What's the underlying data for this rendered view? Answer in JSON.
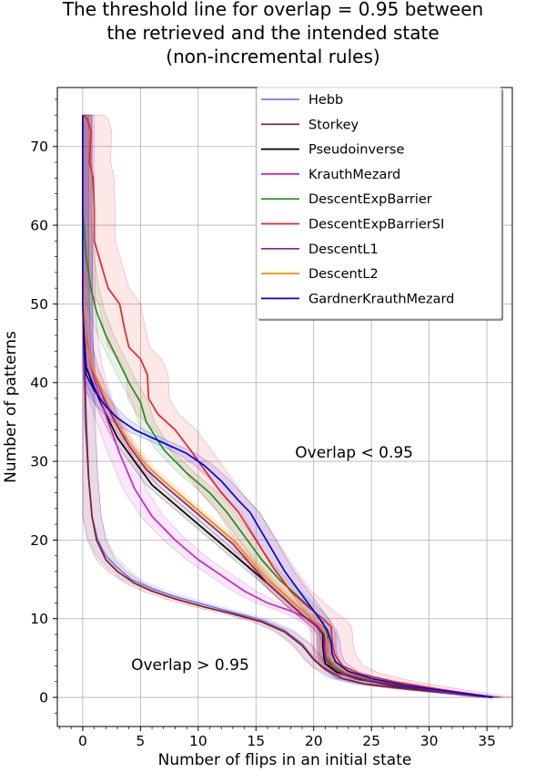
{
  "chart_data": {
    "type": "line",
    "title": [
      "The threshold line for overlap = 0.95 between",
      "the retrieved and the intended state",
      "(non-incremental rules)"
    ],
    "xlabel": "Number of flips in an initial state",
    "ylabel": "Number of patterns",
    "xlim": [
      -2.2,
      37.2
    ],
    "ylim": [
      -3.7,
      77.5
    ],
    "xticks": [
      0,
      5,
      10,
      15,
      20,
      25,
      30,
      35
    ],
    "yticks": [
      0,
      10,
      20,
      30,
      40,
      50,
      60,
      70
    ],
    "grid": true,
    "legend_position": "top-right",
    "annotations": [
      {
        "text": "Overlap < 0.95",
        "x": 23.5,
        "y": 30.5
      },
      {
        "text": "Overlap > 0.95",
        "x": 9.3,
        "y": 3.5
      }
    ],
    "series": [
      {
        "name": "Hebb",
        "color": "#7777ee",
        "band": 0.8,
        "points": [
          [
            0,
            74
          ],
          [
            0,
            60
          ],
          [
            0.1,
            45
          ],
          [
            0.2,
            35
          ],
          [
            0.5,
            28
          ],
          [
            0.8,
            23
          ],
          [
            1.3,
            20
          ],
          [
            2,
            18
          ],
          [
            3,
            16.5
          ],
          [
            4.2,
            15
          ],
          [
            6,
            13.8
          ],
          [
            8,
            12.8
          ],
          [
            10.5,
            11.8
          ],
          [
            13,
            10.8
          ],
          [
            15.5,
            9.8
          ],
          [
            17.5,
            8.5
          ],
          [
            19,
            6.8
          ],
          [
            20,
            5
          ],
          [
            20.6,
            4
          ],
          [
            21,
            3.5
          ],
          [
            22,
            2.5
          ],
          [
            24,
            1.8
          ],
          [
            27,
            1.2
          ],
          [
            31,
            0.6
          ],
          [
            35.5,
            0
          ]
        ]
      },
      {
        "name": "Storkey",
        "color": "#8b1a1a",
        "band": 0.8,
        "points": [
          [
            0,
            74
          ],
          [
            0,
            60
          ],
          [
            0.1,
            45
          ],
          [
            0.3,
            35
          ],
          [
            0.5,
            28
          ],
          [
            0.8,
            23
          ],
          [
            1.2,
            20
          ],
          [
            2,
            17.5
          ],
          [
            3,
            16
          ],
          [
            4.5,
            14.5
          ],
          [
            6,
            13.5
          ],
          [
            8,
            12.5
          ],
          [
            10.5,
            11.5
          ],
          [
            13,
            10.6
          ],
          [
            15.5,
            9.6
          ],
          [
            17.5,
            8.3
          ],
          [
            19,
            6.6
          ],
          [
            20,
            4.8
          ],
          [
            20.8,
            3.8
          ],
          [
            21.5,
            3.2
          ],
          [
            22.5,
            2.4
          ],
          [
            24.5,
            1.7
          ],
          [
            28,
            1.1
          ],
          [
            32,
            0.5
          ],
          [
            35.5,
            0
          ]
        ]
      },
      {
        "name": "Pseudoinverse",
        "color": "#000000",
        "band": 0.5,
        "points": [
          [
            0,
            74
          ],
          [
            0,
            58
          ],
          [
            0.1,
            48
          ],
          [
            0.2,
            44
          ],
          [
            0.3,
            42
          ],
          [
            0.8,
            40
          ],
          [
            2,
            36
          ],
          [
            3,
            33
          ],
          [
            4.5,
            30
          ],
          [
            6,
            27
          ],
          [
            8,
            24.5
          ],
          [
            10,
            22
          ],
          [
            12,
            19.5
          ],
          [
            14,
            17
          ],
          [
            16,
            14.5
          ],
          [
            17.5,
            12.5
          ],
          [
            19,
            10.5
          ],
          [
            20.3,
            9
          ],
          [
            20.8,
            8
          ],
          [
            20.8,
            6.5
          ],
          [
            20.9,
            5
          ],
          [
            21,
            4.3
          ],
          [
            22,
            3.2
          ],
          [
            24,
            2.3
          ],
          [
            27,
            1.5
          ],
          [
            31,
            0.8
          ],
          [
            35.5,
            0
          ]
        ]
      },
      {
        "name": "KrauthMezard",
        "color": "#cc22cc",
        "band": 1.0,
        "points": [
          [
            0,
            74
          ],
          [
            0,
            60
          ],
          [
            0.1,
            50
          ],
          [
            0.3,
            46
          ],
          [
            0.7,
            42
          ],
          [
            1.5,
            38
          ],
          [
            2.2,
            35
          ],
          [
            3.2,
            31
          ],
          [
            4.5,
            26.5
          ],
          [
            6,
            23
          ],
          [
            8,
            20
          ],
          [
            10,
            17.5
          ],
          [
            12,
            15.5
          ],
          [
            14,
            13.5
          ],
          [
            16,
            12
          ],
          [
            18,
            11
          ],
          [
            19.5,
            10
          ],
          [
            20.5,
            9
          ],
          [
            21,
            8
          ],
          [
            21,
            6
          ],
          [
            21.2,
            4.5
          ],
          [
            22,
            3.4
          ],
          [
            24,
            2.4
          ],
          [
            27,
            1.6
          ],
          [
            31,
            0.8
          ],
          [
            35.5,
            0
          ]
        ]
      },
      {
        "name": "DescentExpBarrier",
        "color": "#228b22",
        "band": 0.7,
        "points": [
          [
            0,
            74
          ],
          [
            0,
            62
          ],
          [
            0.3,
            56
          ],
          [
            0.7,
            52
          ],
          [
            1.2,
            49
          ],
          [
            2,
            46
          ],
          [
            3,
            43
          ],
          [
            4,
            40
          ],
          [
            5,
            37.5
          ],
          [
            5.5,
            35
          ],
          [
            7,
            31.5
          ],
          [
            9,
            28.5
          ],
          [
            11,
            26
          ],
          [
            12.5,
            23.5
          ],
          [
            14,
            20.5
          ],
          [
            15.5,
            17.5
          ],
          [
            17,
            15
          ],
          [
            18.5,
            13
          ],
          [
            20,
            11
          ],
          [
            20.8,
            9.5
          ],
          [
            21.2,
            8
          ],
          [
            21.2,
            6
          ],
          [
            21.4,
            4.5
          ],
          [
            22.5,
            3.3
          ],
          [
            24.5,
            2.4
          ],
          [
            28,
            1.5
          ],
          [
            32,
            0.7
          ],
          [
            35.5,
            0
          ]
        ]
      },
      {
        "name": "DescentExpBarrierSI",
        "color": "#ee2222",
        "band": 1.8,
        "points": [
          [
            0,
            74
          ],
          [
            0.4,
            73.5
          ],
          [
            0.7,
            72
          ],
          [
            0.6,
            68
          ],
          [
            0.9,
            66
          ],
          [
            1,
            62
          ],
          [
            1,
            58
          ],
          [
            1.6,
            55
          ],
          [
            2.2,
            52
          ],
          [
            3.2,
            50
          ],
          [
            3.6,
            47
          ],
          [
            4,
            44.5
          ],
          [
            5,
            43
          ],
          [
            5.6,
            41
          ],
          [
            5.7,
            38
          ],
          [
            6.5,
            36
          ],
          [
            8,
            34
          ],
          [
            9.3,
            31.5
          ],
          [
            10.5,
            29
          ],
          [
            12,
            26
          ],
          [
            13.5,
            23.5
          ],
          [
            15,
            20
          ],
          [
            16.5,
            16.5
          ],
          [
            18,
            13.5
          ],
          [
            19.5,
            11.5
          ],
          [
            20.8,
            10
          ],
          [
            21.5,
            9
          ],
          [
            21.6,
            7
          ],
          [
            21.8,
            5.5
          ],
          [
            22.5,
            4
          ],
          [
            24,
            3
          ],
          [
            27,
            2
          ],
          [
            31,
            1
          ],
          [
            35.5,
            0
          ]
        ]
      },
      {
        "name": "DescentL1",
        "color": "#882288",
        "band": 0.5,
        "points": [
          [
            0,
            74
          ],
          [
            0,
            60
          ],
          [
            0.1,
            50
          ],
          [
            0.3,
            45
          ],
          [
            0.8,
            42
          ],
          [
            1.8,
            38
          ],
          [
            2.8,
            35
          ],
          [
            4,
            32
          ],
          [
            5.5,
            29
          ],
          [
            7,
            27
          ],
          [
            9,
            24.5
          ],
          [
            11,
            22
          ],
          [
            13,
            19.5
          ],
          [
            14.5,
            17
          ],
          [
            16,
            14.5
          ],
          [
            17.5,
            12.5
          ],
          [
            19,
            10.5
          ],
          [
            20.3,
            9
          ],
          [
            20.9,
            8
          ],
          [
            20.9,
            6.5
          ],
          [
            21,
            5
          ],
          [
            21.5,
            4
          ],
          [
            22.5,
            3
          ],
          [
            24.5,
            2.2
          ],
          [
            28,
            1.4
          ],
          [
            32,
            0.7
          ],
          [
            35.5,
            0
          ]
        ]
      },
      {
        "name": "DescentL2",
        "color": "#ff8c00",
        "band": 0.5,
        "points": [
          [
            0,
            74
          ],
          [
            0,
            60
          ],
          [
            0.1,
            50
          ],
          [
            0.3,
            45
          ],
          [
            0.8,
            42
          ],
          [
            1.8,
            38.5
          ],
          [
            2.8,
            35.5
          ],
          [
            4,
            32.5
          ],
          [
            5.5,
            29.5
          ],
          [
            7,
            27.5
          ],
          [
            9,
            25
          ],
          [
            11,
            22.5
          ],
          [
            13,
            20
          ],
          [
            14.5,
            17.5
          ],
          [
            16,
            15
          ],
          [
            17.5,
            13
          ],
          [
            19,
            11
          ],
          [
            20.3,
            9.5
          ],
          [
            21,
            8.2
          ],
          [
            21.2,
            6.8
          ],
          [
            21.3,
            5.3
          ],
          [
            21.8,
            4.2
          ],
          [
            22.8,
            3.2
          ],
          [
            24.8,
            2.4
          ],
          [
            28,
            1.5
          ],
          [
            32,
            0.7
          ],
          [
            35.5,
            0
          ]
        ]
      },
      {
        "name": "GardnerKrauthMezard",
        "color": "#0000ee",
        "band": 0.8,
        "points": [
          [
            0,
            74
          ],
          [
            0,
            60
          ],
          [
            0,
            50
          ],
          [
            0.1,
            45
          ],
          [
            0.3,
            41
          ],
          [
            1,
            39
          ],
          [
            2,
            37
          ],
          [
            3,
            35.5
          ],
          [
            4.5,
            34
          ],
          [
            6,
            33
          ],
          [
            7.5,
            32
          ],
          [
            9,
            31
          ],
          [
            10.5,
            29.5
          ],
          [
            12,
            27.5
          ],
          [
            13.5,
            25
          ],
          [
            14.5,
            23.5
          ],
          [
            15.5,
            21
          ],
          [
            16.5,
            18.5
          ],
          [
            17.5,
            16
          ],
          [
            18.5,
            14
          ],
          [
            19.5,
            12
          ],
          [
            20.5,
            10
          ],
          [
            21.2,
            8.5
          ],
          [
            21.5,
            7
          ],
          [
            21.6,
            5.5
          ],
          [
            21.9,
            4.5
          ],
          [
            23,
            3.3
          ],
          [
            25,
            2.4
          ],
          [
            28,
            1.5
          ],
          [
            32,
            0.7
          ],
          [
            35.5,
            0
          ]
        ]
      }
    ]
  }
}
